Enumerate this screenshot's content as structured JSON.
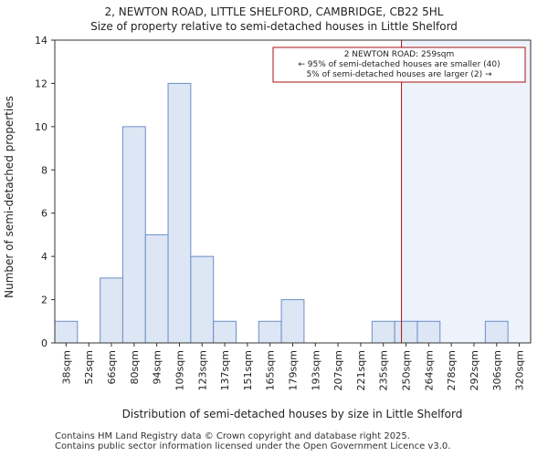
{
  "chart_data": {
    "type": "bar",
    "title": "2, NEWTON ROAD, LITTLE SHELFORD, CAMBRIDGE, CB22 5HL",
    "subtitle": "Size of property relative to semi-detached houses in Little Shelford",
    "xlabel": "Distribution of semi-detached houses by size in Little Shelford",
    "ylabel": "Number of semi-detached properties",
    "categories": [
      "38sqm",
      "52sqm",
      "66sqm",
      "80sqm",
      "94sqm",
      "109sqm",
      "123sqm",
      "137sqm",
      "151sqm",
      "165sqm",
      "179sqm",
      "193sqm",
      "207sqm",
      "221sqm",
      "235sqm",
      "250sqm",
      "264sqm",
      "278sqm",
      "292sqm",
      "306sqm",
      "320sqm"
    ],
    "values": [
      1,
      0,
      3,
      10,
      5,
      12,
      4,
      1,
      0,
      1,
      2,
      0,
      0,
      0,
      1,
      1,
      1,
      0,
      0,
      1,
      0
    ],
    "ylim": [
      0,
      14
    ],
    "yticks": [
      0,
      2,
      4,
      6,
      8,
      10,
      12,
      14
    ],
    "grid": false,
    "bar_color": "#dce6f4",
    "bar_edge_color": "#6d8fc7",
    "highlight_color": "#eef3fb",
    "marker": {
      "value_bin": 15.3,
      "color": "#aa1111"
    },
    "annotation": {
      "line1": "2 NEWTON ROAD: 259sqm",
      "line2": "← 95% of semi-detached houses are smaller (40)",
      "line3": "5% of semi-detached houses are larger (2) →"
    }
  },
  "footer": {
    "line1": "Contains HM Land Registry data © Crown copyright and database right 2025.",
    "line2": "Contains public sector information licensed under the Open Government Licence v3.0."
  }
}
